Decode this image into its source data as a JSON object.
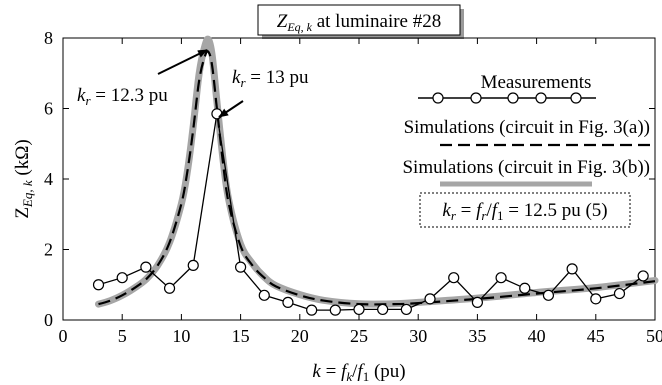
{
  "chart_data": {
    "type": "line",
    "title_parts": [
      "Z",
      "Eq, k",
      " at luminaire #28"
    ],
    "xlabel_parts": [
      "k",
      " = ",
      "f",
      "k",
      "/",
      "f",
      "1",
      " (pu)"
    ],
    "ylabel_parts": [
      "Z",
      "Eq, k",
      " (kΩ)"
    ],
    "xlim": [
      0,
      50
    ],
    "ylim": [
      0,
      8
    ],
    "xticks": [
      0,
      5,
      10,
      15,
      20,
      25,
      30,
      35,
      40,
      45,
      50
    ],
    "yticks": [
      0,
      2,
      4,
      6,
      8
    ],
    "grid": false,
    "legend_position": "right",
    "series": [
      {
        "name": "Measurements",
        "style": "solid-with-circle-markers",
        "color": "#000000",
        "x": [
          3,
          5,
          7,
          9,
          11,
          13,
          15,
          17,
          19,
          21,
          23,
          25,
          27,
          29,
          31,
          33,
          35,
          37,
          39,
          41,
          43,
          45,
          47,
          49
        ],
        "y": [
          1.0,
          1.2,
          1.5,
          0.9,
          1.55,
          5.85,
          1.5,
          0.7,
          0.5,
          0.28,
          0.28,
          0.3,
          0.3,
          0.3,
          0.6,
          1.2,
          0.5,
          1.2,
          0.9,
          0.7,
          1.45,
          0.6,
          0.75,
          1.25
        ]
      },
      {
        "name": "Simulations (circuit in Fig. 3(a))",
        "style": "dashed",
        "color": "#000000",
        "x": [
          3,
          4,
          5,
          6,
          7,
          8,
          9,
          10,
          10.5,
          11,
          11.5,
          12,
          12.3,
          12.6,
          13,
          13.5,
          14,
          15,
          16,
          17,
          18,
          20,
          22,
          25,
          28,
          30,
          35,
          40,
          45,
          50
        ],
        "y": [
          0.45,
          0.55,
          0.7,
          0.9,
          1.15,
          1.55,
          2.2,
          3.3,
          4.2,
          5.4,
          6.8,
          7.5,
          7.6,
          7.2,
          6.0,
          4.5,
          3.3,
          2.1,
          1.55,
          1.2,
          0.95,
          0.7,
          0.55,
          0.45,
          0.45,
          0.48,
          0.6,
          0.75,
          0.9,
          1.1
        ]
      },
      {
        "name": "Simulations (circuit in Fig. 3(b))",
        "style": "thick-gray",
        "color": "#a6a6a6",
        "x": [
          3,
          4,
          5,
          6,
          7,
          8,
          9,
          10,
          10.5,
          11,
          11.5,
          12,
          12.3,
          12.6,
          13,
          13.5,
          14,
          15,
          16,
          17,
          18,
          20,
          22,
          25,
          28,
          30,
          35,
          40,
          45,
          50
        ],
        "y": [
          0.45,
          0.55,
          0.7,
          0.9,
          1.15,
          1.55,
          2.2,
          3.3,
          4.2,
          5.5,
          7.0,
          7.8,
          7.95,
          7.5,
          6.2,
          4.6,
          3.4,
          2.15,
          1.6,
          1.22,
          0.97,
          0.72,
          0.56,
          0.46,
          0.46,
          0.5,
          0.62,
          0.78,
          0.92,
          1.12
        ]
      }
    ],
    "annotations": [
      {
        "parts": [
          "k",
          "r",
          " = 12.3 pu"
        ],
        "arrow_to": [
          12.3,
          7.95
        ]
      },
      {
        "parts": [
          "k",
          "r",
          " = 13 pu"
        ],
        "arrow_to": [
          12.9,
          5.85
        ]
      }
    ],
    "resonance_box_parts": [
      "k",
      "r",
      " = ",
      "f",
      "r",
      "/",
      "f",
      "1",
      " = 12.5 pu (5)"
    ]
  }
}
